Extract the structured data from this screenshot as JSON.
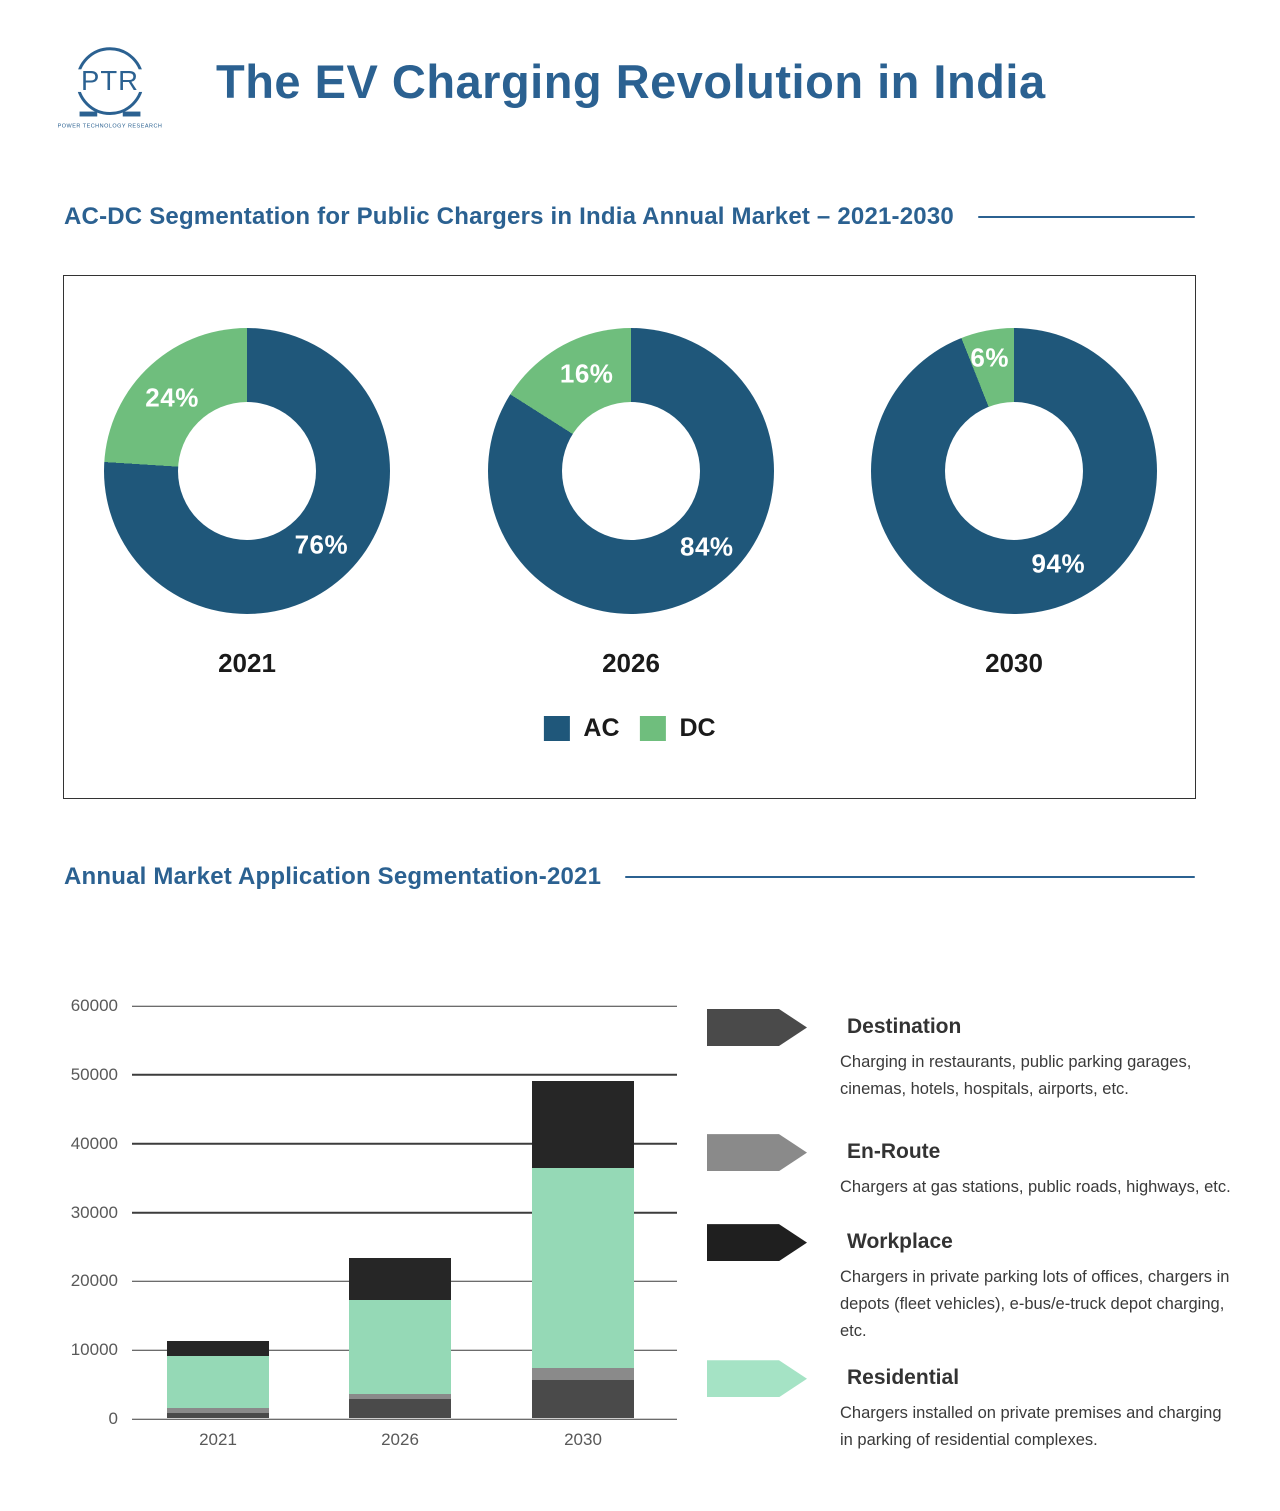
{
  "page": {
    "title": "The EV Charging Revolution in India"
  },
  "logo": {
    "text": "PTR",
    "caption": "POWER TECHNOLOGY RESEARCH"
  },
  "colors": {
    "brand_blue": "#2B6191",
    "ac_blue": "#1F577A",
    "dc_green": "#6FBE7D",
    "residential_green": "#95D9B6",
    "destination_grey": "#4A4A4A",
    "enroute_grey": "#8A8A8A",
    "workplace_black": "#262626",
    "axis_text": "#595959"
  },
  "donut_section": {
    "heading": "AC-DC Segmentation for Public Chargers in India Annual Market – 2021-2030",
    "legend": [
      {
        "label": "AC",
        "key": "AC"
      },
      {
        "label": "DC",
        "key": "DC"
      }
    ]
  },
  "bar_section": {
    "heading": "Annual Market Application Segmentation-2021",
    "items": [
      {
        "title": "Destination",
        "desc": "Charging in restaurants, public parking garages, cinemas, hotels, hospitals, airports, etc.",
        "arrow_color": "#4A4A4A"
      },
      {
        "title": "En-Route",
        "desc": "Chargers at gas stations, public roads, highways, etc.",
        "arrow_color": "#8A8A8A"
      },
      {
        "title": "Workplace",
        "desc": "Chargers in private parking lots of offices, chargers in depots (fleet vehicles), e-bus/e-truck depot charging, etc.",
        "arrow_color": "#1F1F1F"
      },
      {
        "title": "Residential",
        "desc": "Chargers installed on private premises and charging in parking of residential complexes.",
        "arrow_color": "#A5E3C5"
      }
    ]
  },
  "chart_data": [
    {
      "type": "pie",
      "variant": "donut-small-multiples",
      "title": "AC-DC Segmentation for Public Chargers in India Annual Market – 2021-2030",
      "legend": [
        "AC",
        "DC"
      ],
      "legend_position": "bottom-center",
      "colors": {
        "AC": "#1F577A",
        "DC": "#6FBE7D"
      },
      "charts": [
        {
          "label": "2021",
          "slices": [
            {
              "name": "AC",
              "value": 76
            },
            {
              "name": "DC",
              "value": 24
            }
          ],
          "labels": {
            "ac": "76%",
            "dc": "24%"
          }
        },
        {
          "label": "2026",
          "slices": [
            {
              "name": "AC",
              "value": 84
            },
            {
              "name": "DC",
              "value": 16
            }
          ],
          "labels": {
            "ac": "84%",
            "dc": "16%"
          }
        },
        {
          "label": "2030",
          "slices": [
            {
              "name": "AC",
              "value": 94
            },
            {
              "name": "DC",
              "value": 6
            }
          ],
          "labels": {
            "ac": "94%",
            "dc": "6%"
          }
        }
      ]
    },
    {
      "type": "bar",
      "stacked": true,
      "title": "Annual Market Application Segmentation-2021",
      "categories": [
        "2021",
        "2026",
        "2030"
      ],
      "series": [
        {
          "name": "Destination",
          "color": "#4A4A4A",
          "values": [
            800,
            2800,
            5500
          ]
        },
        {
          "name": "En-Route",
          "color": "#8A8A8A",
          "values": [
            700,
            700,
            1700
          ]
        },
        {
          "name": "Residential",
          "color": "#95D9B6",
          "values": [
            7500,
            13600,
            29100
          ]
        },
        {
          "name": "Workplace",
          "color": "#262626",
          "values": [
            2200,
            6200,
            12600
          ]
        }
      ],
      "totals": [
        11200,
        23300,
        48900
      ],
      "stack_order_bottom_to_top": [
        "Destination",
        "En-Route",
        "Residential",
        "Workplace"
      ],
      "xlabel": "",
      "ylabel": "",
      "ylim": [
        0,
        60000
      ],
      "yticks": [
        0,
        10000,
        20000,
        30000,
        40000,
        50000,
        60000
      ],
      "grid": true,
      "legend_position": "right"
    }
  ]
}
